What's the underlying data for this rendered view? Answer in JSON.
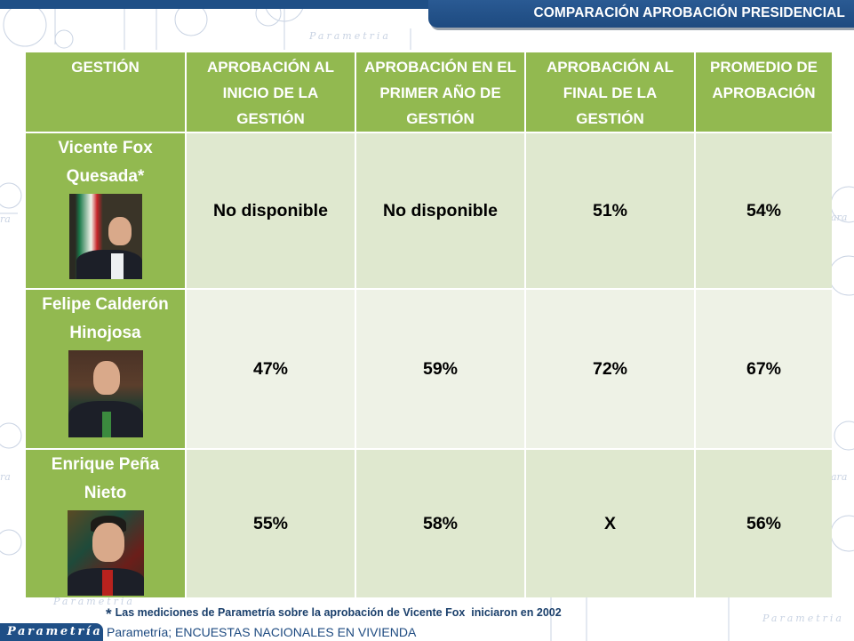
{
  "header": {
    "title": "COMPARACIÓN APROBACIÓN PRESIDENCIAL"
  },
  "colors": {
    "brand_blue": "#1f4f86",
    "header_green": "#92b950",
    "cell_light_green": "#dfe8cf",
    "cell_pale_green": "#eef2e6"
  },
  "table": {
    "columns": [
      "GESTIÓN",
      "APROBACIÓN AL INICIO DE LA GESTIÓN",
      "APROBACIÓN EN EL PRIMER AÑO DE GESTIÓN",
      "APROBACIÓN AL FINAL DE LA GESTIÓN",
      "PROMEDIO DE APROBACIÓN"
    ],
    "rows": [
      {
        "name": "Vicente Fox Quesada*",
        "portrait": "portrait-vicente-fox",
        "inicio": "No disponible",
        "primer_anio": "No disponible",
        "final": "51%",
        "promedio": "54%"
      },
      {
        "name": "Felipe Calderón Hinojosa",
        "portrait": "portrait-felipe-calderon",
        "inicio": "47%",
        "primer_anio": "59%",
        "final": "72%",
        "promedio": "67%"
      },
      {
        "name": "Enrique Peña Nieto",
        "portrait": "portrait-enrique-pena-nieto",
        "inicio": "55%",
        "primer_anio": "58%",
        "final": "X",
        "promedio": "56%"
      }
    ]
  },
  "footer": {
    "note_marker": "*",
    "note": "Las mediciones de Parametría sobre la aprobación de Vicente Fox  iniciaron en 2002",
    "logo": "Parametría",
    "source": "Parametría; ENCUESTAS NACIONALES EN VIVIENDA"
  }
}
